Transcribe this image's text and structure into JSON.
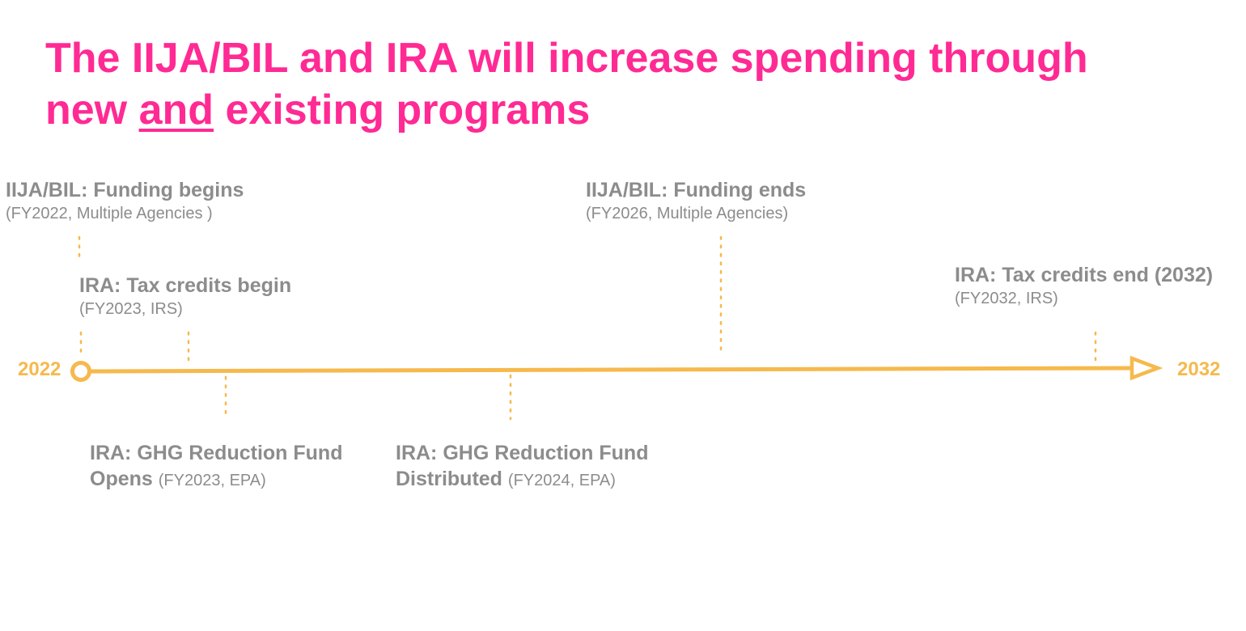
{
  "title": {
    "line1": "The IIJA/BIL and IRA will increase spending through",
    "line2_pre": "new ",
    "line2_emph": "and",
    "line2_post": " existing programs"
  },
  "timeline": {
    "start_label": "2022",
    "end_label": "2032",
    "line_color": "#f6b94c",
    "text_color": "#8c8c8c",
    "title_color": "#ff2a93"
  },
  "events": {
    "iija_begin": {
      "label": "IIJA/BIL: Funding begins",
      "sub": "(FY2022, Multiple Agencies )"
    },
    "ira_tax_begin": {
      "label": "IRA: Tax credits begin",
      "sub": "(FY2023, IRS)"
    },
    "iija_end": {
      "label": "IIJA/BIL: Funding ends",
      "sub": "(FY2026, Multiple Agencies)"
    },
    "ira_tax_end": {
      "label": "IRA: Tax credits end (2032)",
      "sub": "(FY2032, IRS)"
    },
    "ghg_opens": {
      "label_line1": "IRA: GHG Reduction Fund",
      "label_line2": "Opens",
      "sub": "(FY2023, EPA)"
    },
    "ghg_distributed": {
      "label_line1": "IRA: GHG Reduction Fund",
      "label_line2": "Distributed",
      "sub": "(FY2024, EPA)"
    }
  }
}
